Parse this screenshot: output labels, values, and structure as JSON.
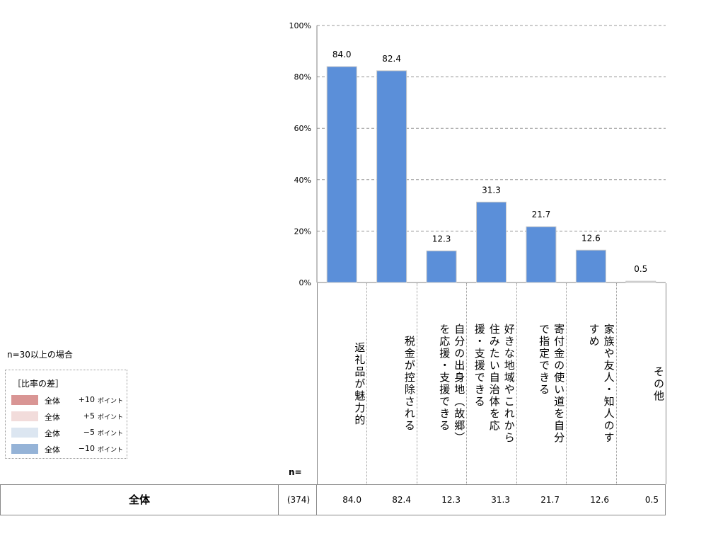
{
  "chart_data": {
    "type": "bar",
    "title": "",
    "xlabel": "",
    "ylabel": "",
    "ylim": [
      0,
      100
    ],
    "y_ticks": [
      "0%",
      "20%",
      "40%",
      "60%",
      "80%",
      "100%"
    ],
    "y_tick_values": [
      0,
      20,
      40,
      60,
      80,
      100
    ],
    "grid": true,
    "categories": [
      "返礼品が魅力的",
      "税金が控除される",
      "自分の出身地（故郷）を応援・支援できる",
      "好きな地域やこれから住みたい自治体を応援・支援できる",
      "寄付金の使い道を自分で指定できる",
      "家族や友人・知人のすすめ",
      "その他"
    ],
    "category_columns": [
      [
        "返礼品が魅力的"
      ],
      [
        "税金が控除される"
      ],
      [
        "自分の出身地︵故郷︶",
        "を応援・支援できる"
      ],
      [
        "好きな地域やこれから",
        "住みたい自治体を応",
        "援・支援できる"
      ],
      [
        "寄付金の使い道を自分",
        "で指定できる"
      ],
      [
        "家族や友人・知人のす",
        "すめ"
      ],
      [
        "その他"
      ]
    ],
    "values": [
      84.0,
      82.4,
      12.3,
      31.3,
      21.7,
      12.6,
      0.5
    ],
    "value_labels": [
      "84.0",
      "82.4",
      "12.3",
      "31.3",
      "21.7",
      "12.6",
      "0.5"
    ],
    "bar_colors": [
      "#5b8fd9",
      "#5b8fd9",
      "#5b8fd9",
      "#5b8fd9",
      "#5b8fd9",
      "#5b8fd9",
      "#d9d9d9"
    ]
  },
  "note": "n=30以上の場合",
  "legend": {
    "title": "［比率の差］",
    "items": [
      {
        "label": "全体",
        "delta": "+10",
        "unit": "ポイント",
        "color": "#d99594"
      },
      {
        "label": "全体",
        "delta": "+5",
        "unit": "ポイント",
        "color": "#f2dcdb"
      },
      {
        "label": "全体",
        "delta": "−5",
        "unit": "ポイント",
        "color": "#dce6f1"
      },
      {
        "label": "全体",
        "delta": "−10",
        "unit": "ポイント",
        "color": "#95b3d7"
      }
    ]
  },
  "table": {
    "n_header": "n=",
    "row_label": "全体",
    "n_value": "(374)",
    "cells": [
      "84.0",
      "82.4",
      "12.3",
      "31.3",
      "21.7",
      "12.6",
      "0.5"
    ]
  }
}
